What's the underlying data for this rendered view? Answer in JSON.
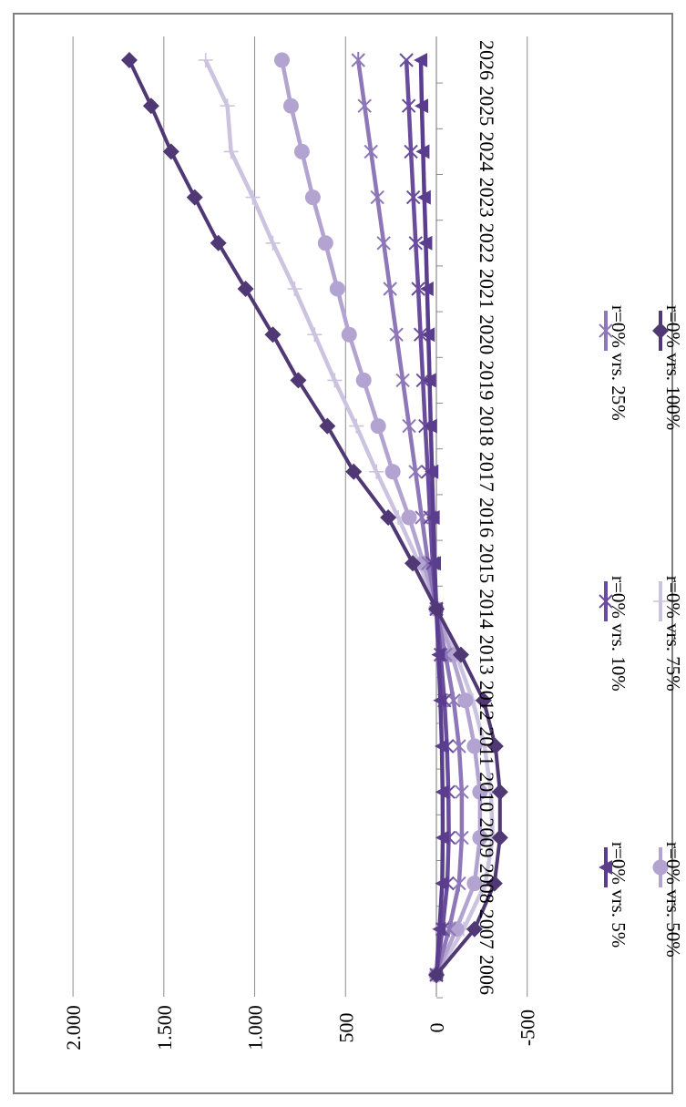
{
  "chart_data": {
    "type": "line",
    "title": "",
    "xlabel": "",
    "ylabel": "",
    "ylim": [
      -500,
      2000
    ],
    "y_ticks": [
      -500,
      0,
      500,
      1000,
      1500,
      2000
    ],
    "y_tick_labels": [
      "-500",
      "0",
      "500",
      "1.000",
      "1.500",
      "2.000"
    ],
    "grid": true,
    "orientation": "rotated-90",
    "legend_position": "right",
    "categories": [
      "2006",
      "2007",
      "2008",
      "2009",
      "2010",
      "2011",
      "2012",
      "2013",
      "2014",
      "2015",
      "2016",
      "2017",
      "2018",
      "2019",
      "2020",
      "2021",
      "2022",
      "2023",
      "2024",
      "2025",
      "2026"
    ],
    "series": [
      {
        "name": "r=0% vrs. 5%",
        "color": "#5b3d8e",
        "marker": "triangle",
        "values": [
          0,
          -17,
          -32,
          -35,
          -34,
          -30,
          -22,
          -12,
          0,
          10,
          17,
          24,
          31,
          37,
          44,
          51,
          58,
          66,
          73,
          80,
          85
        ]
      },
      {
        "name": "r=0% vrs. 10%",
        "color": "#6a4c9c",
        "marker": "x",
        "values": [
          0,
          -33,
          -60,
          -68,
          -66,
          -58,
          -44,
          -23,
          0,
          20,
          34,
          47,
          61,
          74,
          87,
          100,
          114,
          127,
          140,
          152,
          165
        ]
      },
      {
        "name": "r=0% vrs. 25%",
        "color": "#8e77b8",
        "marker": "asterisk",
        "values": [
          0,
          -70,
          -125,
          -140,
          -140,
          -125,
          -95,
          -50,
          0,
          45,
          80,
          115,
          150,
          185,
          220,
          255,
          290,
          325,
          360,
          395,
          430
        ]
      },
      {
        "name": "r=0% vrs. 50%",
        "color": "#b3a3d1",
        "marker": "circle",
        "values": [
          0,
          -110,
          -210,
          -240,
          -240,
          -210,
          -160,
          -85,
          0,
          70,
          150,
          240,
          320,
          400,
          480,
          545,
          610,
          680,
          740,
          800,
          850
        ]
      },
      {
        "name": "r=0% vrs. 75%",
        "color": "#ccc3e0",
        "marker": "plus",
        "values": [
          0,
          -150,
          -270,
          -310,
          -300,
          -265,
          -200,
          -110,
          0,
          95,
          210,
          330,
          440,
          560,
          670,
          780,
          900,
          1010,
          1130,
          1150,
          1270
        ]
      },
      {
        "name": "r=0% vrs. 100%",
        "color": "#4f3874",
        "marker": "diamond",
        "values": [
          0,
          -210,
          -320,
          -350,
          -350,
          -325,
          -260,
          -135,
          0,
          130,
          265,
          455,
          600,
          760,
          900,
          1050,
          1200,
          1330,
          1460,
          1570,
          1690
        ]
      }
    ]
  }
}
